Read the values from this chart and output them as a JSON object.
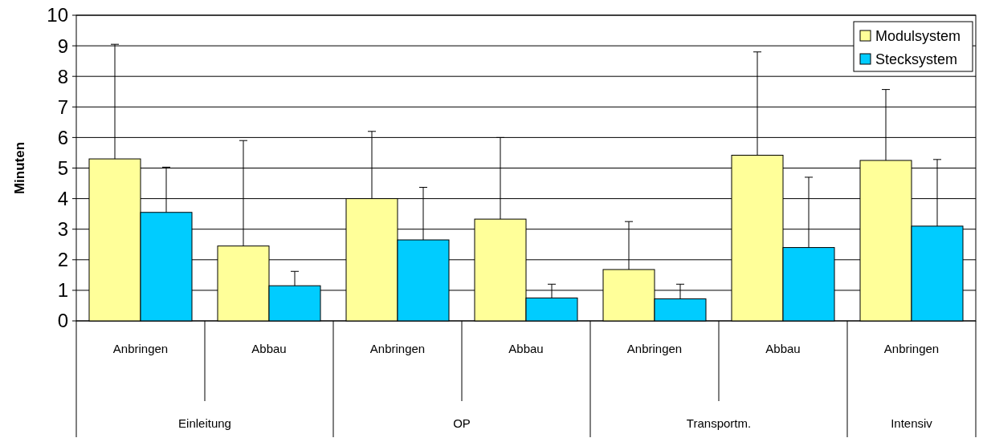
{
  "chart_data": {
    "type": "bar",
    "ylabel": "Minuten",
    "categories": [
      "Anbringen",
      "Abbau",
      "Anbringen",
      "Abbau",
      "Anbringen",
      "Abbau",
      "Anbringen"
    ],
    "series": [
      {
        "name": "Modulsystem",
        "color": "#ffff99",
        "values": [
          5.3,
          2.45,
          4.0,
          3.33,
          1.68,
          5.42,
          5.25
        ],
        "errors": [
          [
            5.3,
            9.05
          ],
          [
            2.45,
            5.9
          ],
          [
            4.0,
            6.2
          ],
          [
            3.33,
            6.0
          ],
          [
            1.68,
            3.25
          ],
          [
            5.42,
            8.8
          ],
          [
            5.25,
            7.57
          ]
        ]
      },
      {
        "name": "Stecksystem",
        "color": "#00ccff",
        "values": [
          3.55,
          1.15,
          2.65,
          0.75,
          0.72,
          2.4,
          3.1
        ],
        "errors": [
          [
            3.55,
            5.03
          ],
          [
            1.15,
            1.62
          ],
          [
            2.65,
            4.37
          ],
          [
            0.75,
            1.2
          ],
          [
            0.72,
            1.2
          ],
          [
            2.4,
            4.7
          ],
          [
            3.1,
            5.28
          ]
        ]
      }
    ],
    "annotations": [
      "Einleitung",
      "OP",
      "Transportm.",
      "Intensiv"
    ],
    "ylim": [
      0,
      10
    ],
    "yticks": [
      0,
      1,
      2,
      3,
      4,
      5,
      6,
      7,
      8,
      9,
      10
    ],
    "grid": "y",
    "legend": "top right"
  }
}
